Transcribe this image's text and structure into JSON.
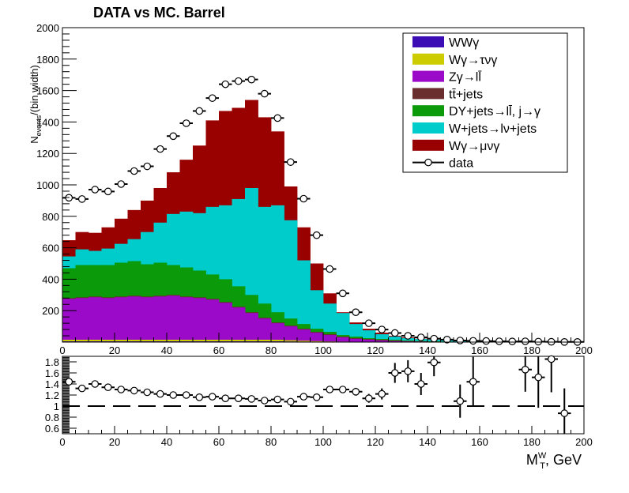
{
  "chart_data": [
    {
      "type": "area",
      "subtype": "stacked-histogram-with-data-points",
      "title": "DATA vs MC. Barrel",
      "xlabel": "",
      "ylabel": "N_{events}/(bin width)",
      "ylabel_parts": {
        "main": "N",
        "sub": "events",
        "rest": "/(bin width)"
      },
      "xlim": [
        0,
        200
      ],
      "ylim": [
        0,
        2000
      ],
      "bin_width": 5,
      "x_ticks": [
        "0",
        "20",
        "40",
        "60",
        "80",
        "100",
        "120",
        "140",
        "160",
        "180",
        "200"
      ],
      "y_ticks": [
        "200",
        "400",
        "600",
        "800",
        "1000",
        "1200",
        "1400",
        "1600",
        "1800",
        "2000"
      ],
      "legend_position": "top-right",
      "stack_order": [
        "wwg",
        "wg_taunug",
        "zg",
        "ttjets",
        "dyjets",
        "wjets",
        "wg_munug"
      ],
      "series": [
        {
          "key": "wwg",
          "name": "WWγ",
          "color": "#3c0db4",
          "cumulative_top": [
            5,
            5,
            5,
            5,
            5,
            5,
            5,
            5,
            5,
            5,
            5,
            5,
            5,
            5,
            5,
            5,
            5,
            4,
            3,
            2,
            2,
            1,
            1,
            1,
            0,
            0,
            0,
            0,
            0,
            0,
            0,
            0,
            0,
            0,
            0,
            0,
            0,
            0,
            0,
            0
          ]
        },
        {
          "key": "wg_taunug",
          "name": "Wγ→τνγ",
          "color": "#cccc00",
          "cumulative_top": [
            15,
            15,
            15,
            15,
            15,
            15,
            15,
            15,
            15,
            15,
            15,
            15,
            15,
            15,
            15,
            15,
            15,
            12,
            9,
            6,
            4,
            3,
            2,
            1,
            1,
            1,
            0,
            0,
            0,
            0,
            0,
            0,
            0,
            0,
            0,
            0,
            0,
            0,
            0,
            0
          ]
        },
        {
          "key": "zg",
          "name": "Zγ→ll̄",
          "color": "#9b09c9",
          "cumulative_top": [
            275,
            280,
            285,
            280,
            285,
            290,
            285,
            290,
            295,
            285,
            280,
            270,
            250,
            220,
            185,
            150,
            120,
            100,
            80,
            60,
            45,
            30,
            20,
            15,
            10,
            6,
            4,
            3,
            2,
            1,
            1,
            1,
            0,
            0,
            0,
            0,
            0,
            0,
            0,
            0
          ]
        },
        {
          "key": "ttjets",
          "name": "tt̄+jets",
          "color": "#6b2e2e",
          "cumulative_top": [
            280,
            285,
            290,
            285,
            290,
            295,
            290,
            295,
            300,
            290,
            285,
            275,
            255,
            225,
            190,
            155,
            125,
            105,
            85,
            65,
            50,
            35,
            25,
            20,
            15,
            10,
            7,
            5,
            3,
            2,
            2,
            1,
            1,
            1,
            0,
            0,
            0,
            0,
            0,
            0
          ]
        },
        {
          "key": "dyjets",
          "name": "DY+jets→ll̄, j→γ",
          "color": "#0a9a0a",
          "cumulative_top": [
            470,
            490,
            490,
            490,
            505,
            515,
            495,
            505,
            490,
            475,
            455,
            430,
            400,
            355,
            300,
            245,
            190,
            150,
            115,
            85,
            65,
            45,
            35,
            25,
            20,
            15,
            10,
            7,
            5,
            3,
            2,
            2,
            1,
            1,
            0,
            0,
            0,
            0,
            0,
            0
          ]
        },
        {
          "key": "wjets",
          "name": "W+jets→lν+jets",
          "color": "#00cccc",
          "cumulative_top": [
            545,
            590,
            580,
            595,
            625,
            655,
            700,
            760,
            815,
            830,
            820,
            860,
            870,
            910,
            980,
            860,
            870,
            775,
            520,
            330,
            245,
            185,
            115,
            75,
            50,
            35,
            25,
            20,
            15,
            10,
            8,
            6,
            5,
            4,
            3,
            2,
            2,
            1,
            1,
            0
          ]
        },
        {
          "key": "wg_munug",
          "name": "Wγ→μνγ",
          "color": "#990000",
          "cumulative_top": [
            648,
            700,
            695,
            730,
            785,
            840,
            900,
            980,
            1080,
            1160,
            1250,
            1410,
            1470,
            1490,
            1540,
            1430,
            1340,
            990,
            730,
            500,
            310,
            190,
            125,
            85,
            60,
            40,
            30,
            22,
            16,
            11,
            8,
            6,
            5,
            4,
            3,
            2,
            2,
            1,
            1,
            1
          ]
        }
      ],
      "data": {
        "name": "data",
        "x": [
          2.5,
          7.5,
          12.5,
          17.5,
          22.5,
          27.5,
          32.5,
          37.5,
          42.5,
          47.5,
          52.5,
          57.5,
          62.5,
          67.5,
          72.5,
          77.5,
          82.5,
          87.5,
          92.5,
          97.5,
          102.5,
          107.5,
          112.5,
          117.5,
          122.5,
          127.5,
          132.5,
          137.5,
          142.5,
          147.5,
          152.5,
          157.5,
          162.5,
          167.5,
          172.5,
          177.5,
          182.5,
          187.5,
          192.5,
          197.5
        ],
        "y": [
          918,
          910,
          970,
          958,
          1005,
          1088,
          1118,
          1228,
          1310,
          1392,
          1470,
          1552,
          1640,
          1660,
          1670,
          1580,
          1425,
          1145,
          912,
          680,
          465,
          310,
          190,
          120,
          80,
          58,
          40,
          30,
          22,
          16,
          10,
          8,
          7,
          5,
          4,
          5,
          3,
          2,
          1,
          1
        ]
      }
    },
    {
      "type": "scatter",
      "subtype": "ratio-panel",
      "xlabel": "M_{T}^{W}, GeV",
      "xlabel_parts": {
        "main": "M",
        "sub": "T",
        "sup": "W",
        "rest": ", GeV"
      },
      "xlim": [
        0,
        200
      ],
      "ylim": [
        0.5,
        1.9
      ],
      "x_ticks": [
        "0",
        "20",
        "40",
        "60",
        "80",
        "100",
        "120",
        "140",
        "160",
        "180",
        "200"
      ],
      "y_ticks": [
        "0.6",
        "0.8",
        "1",
        "1.2",
        "1.4",
        "1.6",
        "1.8"
      ],
      "reference_line": 1,
      "reference_style": "dashed",
      "points": [
        {
          "x": 2.5,
          "y": 1.44,
          "err": 0.03
        },
        {
          "x": 7.5,
          "y": 1.32,
          "err": 0.03
        },
        {
          "x": 12.5,
          "y": 1.4,
          "err": 0.03
        },
        {
          "x": 17.5,
          "y": 1.34,
          "err": 0.03
        },
        {
          "x": 22.5,
          "y": 1.3,
          "err": 0.03
        },
        {
          "x": 27.5,
          "y": 1.28,
          "err": 0.03
        },
        {
          "x": 32.5,
          "y": 1.25,
          "err": 0.03
        },
        {
          "x": 37.5,
          "y": 1.22,
          "err": 0.03
        },
        {
          "x": 42.5,
          "y": 1.2,
          "err": 0.03
        },
        {
          "x": 47.5,
          "y": 1.2,
          "err": 0.03
        },
        {
          "x": 52.5,
          "y": 1.16,
          "err": 0.03
        },
        {
          "x": 57.5,
          "y": 1.17,
          "err": 0.03
        },
        {
          "x": 62.5,
          "y": 1.14,
          "err": 0.03
        },
        {
          "x": 67.5,
          "y": 1.14,
          "err": 0.03
        },
        {
          "x": 72.5,
          "y": 1.13,
          "err": 0.03
        },
        {
          "x": 77.5,
          "y": 1.1,
          "err": 0.03
        },
        {
          "x": 82.5,
          "y": 1.12,
          "err": 0.03
        },
        {
          "x": 87.5,
          "y": 1.08,
          "err": 0.03
        },
        {
          "x": 92.5,
          "y": 1.17,
          "err": 0.03
        },
        {
          "x": 97.5,
          "y": 1.16,
          "err": 0.03
        },
        {
          "x": 102.5,
          "y": 1.3,
          "err": 0.05
        },
        {
          "x": 107.5,
          "y": 1.3,
          "err": 0.06
        },
        {
          "x": 112.5,
          "y": 1.26,
          "err": 0.07
        },
        {
          "x": 117.5,
          "y": 1.14,
          "err": 0.08
        },
        {
          "x": 122.5,
          "y": 1.22,
          "err": 0.1
        },
        {
          "x": 127.5,
          "y": 1.6,
          "err": 0.18
        },
        {
          "x": 132.5,
          "y": 1.63,
          "err": 0.2
        },
        {
          "x": 137.5,
          "y": 1.4,
          "err": 0.2
        },
        {
          "x": 142.5,
          "y": 1.79,
          "err": 0.25
        },
        {
          "x": 152.5,
          "y": 1.09,
          "err": 0.3
        },
        {
          "x": 157.5,
          "y": 1.44,
          "err": 0.45
        },
        {
          "x": 177.5,
          "y": 1.66,
          "err": 0.4
        },
        {
          "x": 182.5,
          "y": 1.52,
          "err": 0.55
        },
        {
          "x": 187.5,
          "y": 1.85,
          "err": 0.6
        },
        {
          "x": 192.5,
          "y": 0.87,
          "err": 0.45
        }
      ]
    }
  ]
}
